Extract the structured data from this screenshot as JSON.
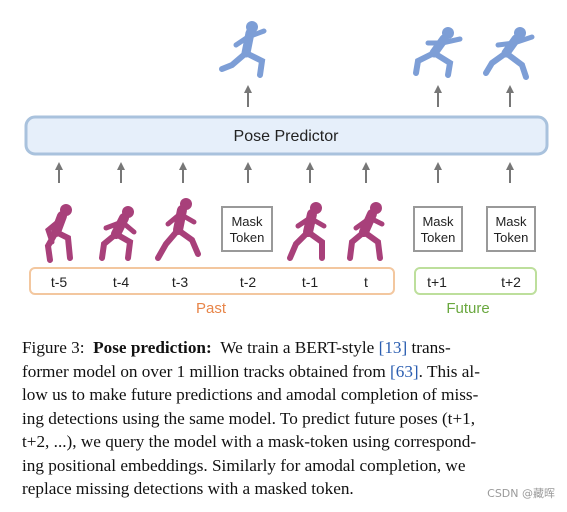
{
  "figure": {
    "predictor_label": "Pose Predictor",
    "mask_token_line1": "Mask",
    "mask_token_line2": "Token",
    "past_label": "Past",
    "future_label": "Future",
    "timesteps": [
      "t-5",
      "t-4",
      "t-3",
      "t-2",
      "t-1",
      "t",
      "t+1",
      "t+2"
    ],
    "colors": {
      "predictor_fill": "#e6effa",
      "predictor_stroke": "#a9c2dd",
      "past_bracket": "#f3c79f",
      "past_text": "#e8864a",
      "future_bracket": "#bddf9c",
      "future_text": "#6aa83f",
      "input_figure": "#a8407a",
      "output_figure": "#7d9ed6",
      "arrow": "#777777"
    }
  },
  "caption": {
    "fig_label": "Figure 3:",
    "title": "Pose prediction:",
    "line1_rest": "We train a BERT-style",
    "ref1": "[13]",
    "line1_end": "trans-",
    "line2_pre": "former model on over 1 million tracks obtained from",
    "ref2": "[63]",
    "line2_end": ". This al-",
    "line3": "low us to make future predictions and amodal completion of miss-",
    "line4": "ing detections using the same model. To predict future poses (t+1,",
    "line5": "t+2, ...), we query the model with a mask-token using correspond-",
    "line6": "ing positional embeddings. Similarly for amodal completion, we",
    "line7": "replace missing detections with a masked token."
  },
  "watermark": "CSDN @藏晖"
}
